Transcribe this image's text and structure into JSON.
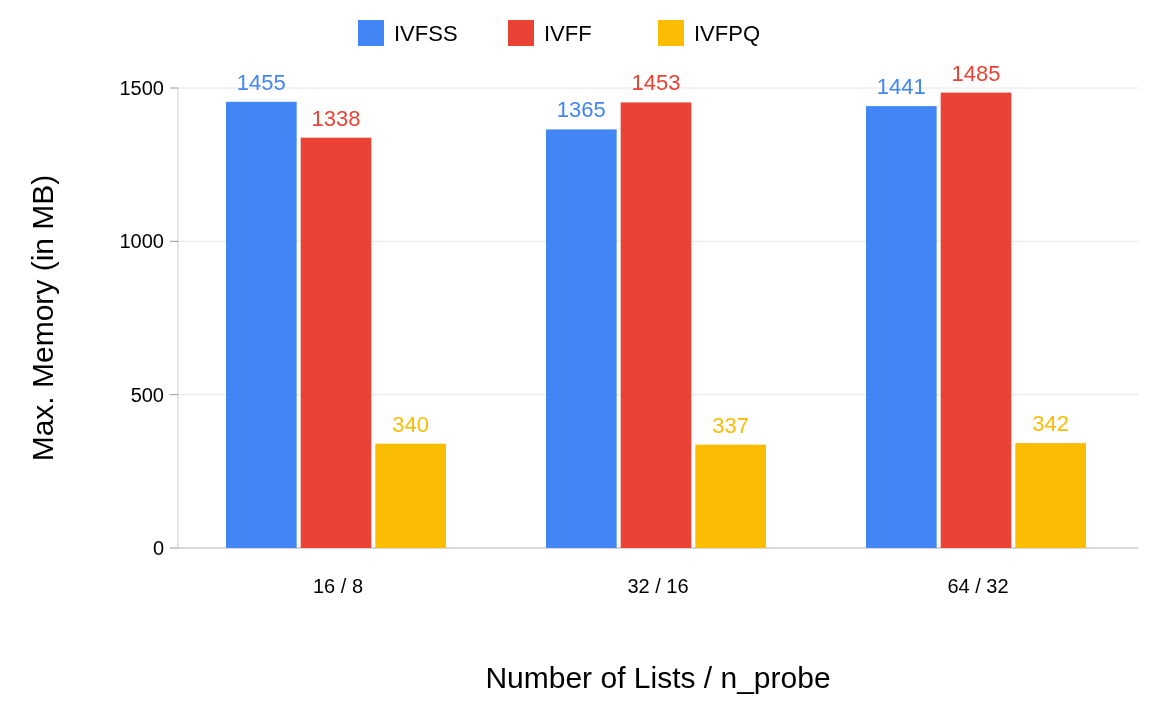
{
  "chart_data": {
    "type": "bar",
    "xlabel": "Number of Lists / n_probe",
    "ylabel": "Max. Memory (in MB)",
    "categories": [
      "16 / 8",
      "32 / 16",
      "64 / 32"
    ],
    "series": [
      {
        "name": "IVFSS",
        "color": "#4285f4",
        "values": [
          1455,
          1365,
          1441
        ]
      },
      {
        "name": "IVFF",
        "color": "#ea4335",
        "values": [
          1338,
          1453,
          1485
        ]
      },
      {
        "name": "IVFPQ",
        "color": "#fbbc04",
        "values": [
          340,
          337,
          342
        ]
      }
    ],
    "ylim": [
      0,
      1500
    ],
    "yticks": [
      0,
      500,
      1000,
      1500
    ],
    "grid": "y",
    "legend": "top",
    "data_labels": true
  }
}
